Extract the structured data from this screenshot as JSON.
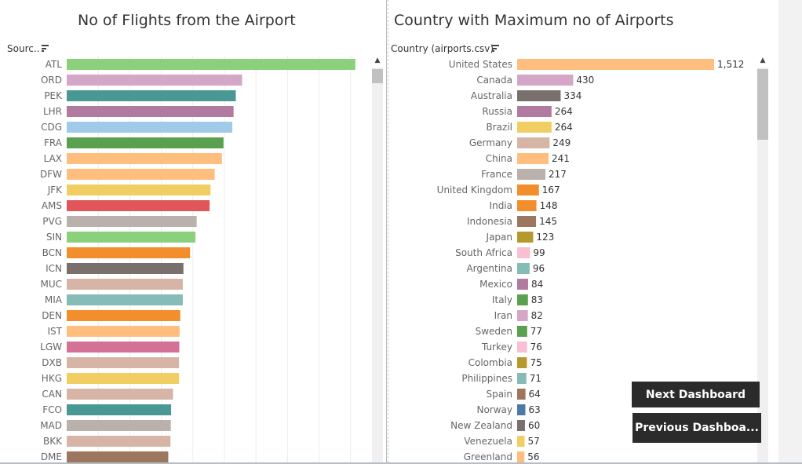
{
  "left_chart": {
    "title": "No of Flights from the Airport",
    "header": "Sourc..",
    "sort_icon": "sort-descending-icon"
  },
  "right_chart": {
    "title": "Country with Maximum no of Airports",
    "header": "Country (airports.csv)",
    "sort_icon": "sort-descending-icon"
  },
  "buttons": {
    "next_label": "Next Dashboard",
    "previous_label": "Previous  Dashboa..."
  },
  "colors": {
    "ATL": "#8bd17c",
    "ORD": "#d4a6c8",
    "PEK": "#499894",
    "LHR": "#b07aa1",
    "CDG": "#a0cbe8",
    "FRA": "#59a14f",
    "LAX": "#ffbe7d",
    "DFW": "#ffbe7d",
    "JFK": "#f1ce63",
    "AMS": "#e15759",
    "PVG": "#bab0ac",
    "SIN": "#8bd17c",
    "BCN": "#f28e2b",
    "ICN": "#79706e",
    "MUC": "#d7b5a6",
    "MIA": "#86bcb6",
    "DEN": "#f28e2b",
    "IST": "#ffbe7d",
    "LGW": "#d37295",
    "DXB": "#d7b5a6",
    "HKG": "#f1ce63",
    "CAN": "#d7b5a6",
    "FCO": "#499894",
    "MAD": "#bab0ac",
    "BKK": "#d7b5a6",
    "DME": "#9d7660"
  },
  "chart_data": [
    {
      "type": "bar",
      "orientation": "horizontal",
      "title": "No of Flights from the Airport",
      "categories": [
        "ATL",
        "ORD",
        "PEK",
        "LHR",
        "CDG",
        "FRA",
        "LAX",
        "DFW",
        "JFK",
        "AMS",
        "PVG",
        "SIN",
        "BCN",
        "ICN",
        "MUC",
        "MIA",
        "DEN",
        "IST",
        "LGW",
        "DXB",
        "HKG",
        "CAN",
        "FCO",
        "MAD",
        "BKK",
        "DME"
      ],
      "values": [
        915,
        556,
        536,
        529,
        525,
        497,
        492,
        469,
        456,
        453,
        412,
        408,
        391,
        370,
        368,
        368,
        360,
        358,
        357,
        356,
        356,
        337,
        331,
        330,
        329,
        322
      ],
      "xlim": [
        0,
        1000
      ],
      "grid": true,
      "colors": [
        "#8bd17c",
        "#d4a6c8",
        "#499894",
        "#b07aa1",
        "#a0cbe8",
        "#59a14f",
        "#ffbe7d",
        "#ffbe7d",
        "#f1ce63",
        "#e15759",
        "#bab0ac",
        "#8bd17c",
        "#f28e2b",
        "#79706e",
        "#d7b5a6",
        "#86bcb6",
        "#f28e2b",
        "#ffbe7d",
        "#d37295",
        "#d7b5a6",
        "#f1ce63",
        "#d7b5a6",
        "#499894",
        "#bab0ac",
        "#d7b5a6",
        "#9d7660"
      ]
    },
    {
      "type": "bar",
      "orientation": "horizontal",
      "title": "Country with Maximum no of Airports",
      "categories": [
        "United States",
        "Canada",
        "Australia",
        "Russia",
        "Brazil",
        "Germany",
        "China",
        "France",
        "United Kingdom",
        "India",
        "Indonesia",
        "Japan",
        "South Africa",
        "Argentina",
        "Mexico",
        "Italy",
        "Iran",
        "Sweden",
        "Turkey",
        "Colombia",
        "Philippines",
        "Spain",
        "Norway",
        "New Zealand",
        "Venezuela",
        "Greenland"
      ],
      "values": [
        1512,
        430,
        334,
        264,
        264,
        249,
        241,
        217,
        167,
        148,
        145,
        123,
        99,
        96,
        84,
        83,
        82,
        77,
        76,
        75,
        71,
        64,
        63,
        60,
        57,
        56
      ],
      "data_labels": [
        "1,512",
        "430",
        "334",
        "264",
        "264",
        "249",
        "241",
        "217",
        "167",
        "148",
        "145",
        "123",
        "99",
        "96",
        "84",
        "83",
        "82",
        "77",
        "76",
        "75",
        "71",
        "64",
        "63",
        "60",
        "57",
        "56"
      ],
      "xlim": [
        0,
        1512
      ],
      "grid": false,
      "colors": [
        "#ffbe7d",
        "#d4a6c8",
        "#79706e",
        "#b07aa1",
        "#f1ce63",
        "#d7b5a6",
        "#ffbe7d",
        "#bab0ac",
        "#f28e2b",
        "#f28e2b",
        "#9d7660",
        "#b6992d",
        "#fabfd2",
        "#86bcb6",
        "#b07aa1",
        "#59a14f",
        "#d4a6c8",
        "#59a14f",
        "#fabfd2",
        "#b6992d",
        "#86bcb6",
        "#9d7660",
        "#4e79a7",
        "#79706e",
        "#f1ce63",
        "#ffbe7d"
      ]
    }
  ]
}
